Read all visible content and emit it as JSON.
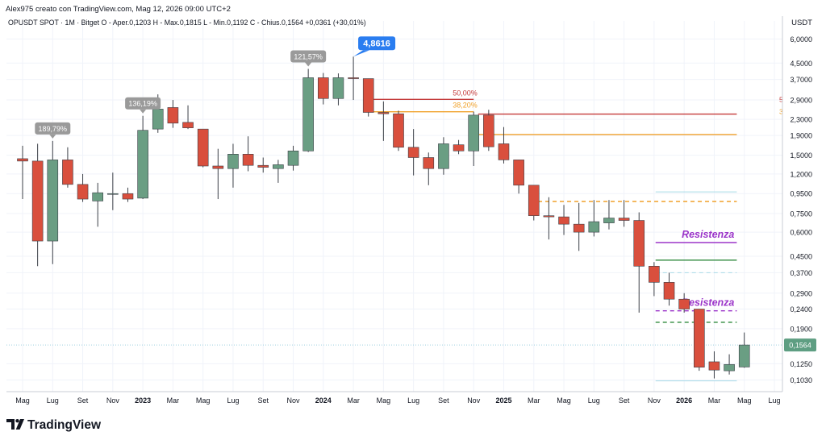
{
  "header": {
    "credit": "Alex975 creato con TradingView.com, Mag 12, 2026 09:00 UTC+2",
    "symbol_line": "OPUSDT SPOT · 1M · Bitget  O - Aper.0,1203  H - Max.0,1815  L - Min.0,1192  C - Chius.0,1564  +0,0361 (+30,01%)",
    "currency": "USDT"
  },
  "brand": {
    "name": "TradingView"
  },
  "colors": {
    "up": "#6a9e83",
    "down": "#d94f3d",
    "fib50": "#c43a3a",
    "fib382": "#f0a12a",
    "resistance": "#9b35c9",
    "green_line": "#2f8a3c",
    "light_blue": "#a9dbe8",
    "price_label": "#5e9e82",
    "callout_gray": "#9a9a9a",
    "callout_blue": "#2a7df0"
  },
  "chart_data": {
    "type": "candlestick",
    "y_scale": "log",
    "ylim": [
      0.095,
      6.5
    ],
    "y_ticks": [
      "6,0000",
      "4,5000",
      "3,7000",
      "2,9000",
      "2,3000",
      "1,9000",
      "1,5000",
      "1,2000",
      "0,9500",
      "0,7500",
      "0,6000",
      "0,4500",
      "0,3700",
      "0,2900",
      "0,2400",
      "0,1900",
      "0,1250",
      "0,1030"
    ],
    "x_tick_labels": [
      "Mag",
      "Lug",
      "Set",
      "Nov",
      "2023",
      "Mar",
      "Mag",
      "Lug",
      "Set",
      "Nov",
      "2024",
      "Mar",
      "Mag",
      "Lug",
      "Set",
      "Nov",
      "2025",
      "Mar",
      "Mag",
      "Lug",
      "Set",
      "Nov",
      "2026",
      "Mar",
      "Mag",
      "Lug"
    ],
    "candles": [
      {
        "o": 1.44,
        "h": 1.68,
        "l": 0.89,
        "c": 1.4
      },
      {
        "o": 1.4,
        "h": 1.72,
        "l": 0.4,
        "c": 0.54
      },
      {
        "o": 0.54,
        "h": 1.78,
        "l": 0.41,
        "c": 1.42
      },
      {
        "o": 1.42,
        "h": 1.65,
        "l": 1.02,
        "c": 1.06
      },
      {
        "o": 1.06,
        "h": 1.2,
        "l": 0.86,
        "c": 0.89
      },
      {
        "o": 0.87,
        "h": 1.08,
        "l": 0.64,
        "c": 0.96
      },
      {
        "o": 0.95,
        "h": 1.22,
        "l": 0.78,
        "c": 0.95
      },
      {
        "o": 0.95,
        "h": 1.02,
        "l": 0.86,
        "c": 0.89
      },
      {
        "o": 0.9,
        "h": 2.4,
        "l": 0.89,
        "c": 2.02
      },
      {
        "o": 2.05,
        "h": 3.1,
        "l": 1.96,
        "c": 2.6
      },
      {
        "o": 2.65,
        "h": 2.9,
        "l": 2.08,
        "c": 2.2
      },
      {
        "o": 2.22,
        "h": 2.72,
        "l": 2.05,
        "c": 2.08
      },
      {
        "o": 2.05,
        "h": 2.05,
        "l": 1.3,
        "c": 1.32
      },
      {
        "o": 1.32,
        "h": 1.62,
        "l": 0.89,
        "c": 1.28
      },
      {
        "o": 1.28,
        "h": 1.72,
        "l": 1.02,
        "c": 1.52
      },
      {
        "o": 1.52,
        "h": 1.88,
        "l": 1.24,
        "c": 1.33
      },
      {
        "o": 1.33,
        "h": 1.46,
        "l": 1.22,
        "c": 1.3
      },
      {
        "o": 1.28,
        "h": 1.42,
        "l": 1.08,
        "c": 1.34
      },
      {
        "o": 1.33,
        "h": 1.68,
        "l": 1.25,
        "c": 1.58
      },
      {
        "o": 1.58,
        "h": 4.2,
        "l": 1.56,
        "c": 3.78
      },
      {
        "o": 3.78,
        "h": 4.0,
        "l": 2.75,
        "c": 2.95
      },
      {
        "o": 2.95,
        "h": 3.98,
        "l": 2.72,
        "c": 3.78
      },
      {
        "o": 3.78,
        "h": 4.86,
        "l": 2.9,
        "c": 3.74
      },
      {
        "o": 3.74,
        "h": 3.74,
        "l": 2.38,
        "c": 2.5
      },
      {
        "o": 2.5,
        "h": 2.85,
        "l": 1.78,
        "c": 2.46
      },
      {
        "o": 2.46,
        "h": 2.55,
        "l": 1.58,
        "c": 1.65
      },
      {
        "o": 1.65,
        "h": 2.05,
        "l": 1.18,
        "c": 1.46
      },
      {
        "o": 1.46,
        "h": 1.55,
        "l": 1.05,
        "c": 1.28
      },
      {
        "o": 1.28,
        "h": 1.86,
        "l": 1.19,
        "c": 1.72
      },
      {
        "o": 1.7,
        "h": 1.8,
        "l": 1.52,
        "c": 1.58
      },
      {
        "o": 1.58,
        "h": 2.52,
        "l": 1.32,
        "c": 2.42
      },
      {
        "o": 2.42,
        "h": 2.58,
        "l": 1.58,
        "c": 1.66
      },
      {
        "o": 1.72,
        "h": 2.1,
        "l": 1.36,
        "c": 1.42
      },
      {
        "o": 1.42,
        "h": 1.42,
        "l": 0.95,
        "c": 1.05
      },
      {
        "o": 1.05,
        "h": 1.05,
        "l": 0.69,
        "c": 0.73
      },
      {
        "o": 0.73,
        "h": 0.91,
        "l": 0.55,
        "c": 0.72
      },
      {
        "o": 0.72,
        "h": 0.83,
        "l": 0.58,
        "c": 0.66
      },
      {
        "o": 0.66,
        "h": 0.85,
        "l": 0.48,
        "c": 0.6
      },
      {
        "o": 0.6,
        "h": 0.88,
        "l": 0.57,
        "c": 0.68
      },
      {
        "o": 0.67,
        "h": 0.88,
        "l": 0.62,
        "c": 0.71
      },
      {
        "o": 0.71,
        "h": 0.88,
        "l": 0.64,
        "c": 0.69
      },
      {
        "o": 0.69,
        "h": 0.76,
        "l": 0.23,
        "c": 0.4
      },
      {
        "o": 0.4,
        "h": 0.42,
        "l": 0.28,
        "c": 0.33
      },
      {
        "o": 0.33,
        "h": 0.37,
        "l": 0.25,
        "c": 0.27
      },
      {
        "o": 0.27,
        "h": 0.29,
        "l": 0.23,
        "c": 0.24
      },
      {
        "o": 0.24,
        "h": 0.24,
        "l": 0.115,
        "c": 0.12
      },
      {
        "o": 0.128,
        "h": 0.145,
        "l": 0.105,
        "c": 0.116
      },
      {
        "o": 0.115,
        "h": 0.14,
        "l": 0.11,
        "c": 0.124
      },
      {
        "o": 0.1203,
        "h": 0.1815,
        "l": 0.1192,
        "c": 0.1564
      }
    ],
    "levels": [
      {
        "name": "fib-50-level",
        "label": "50,00%",
        "right_label": "5",
        "value": 2.92,
        "from": 23,
        "to": 30,
        "color_key": "fib50",
        "style": "solid"
      },
      {
        "name": "fib-50-extended-level",
        "value": 2.45,
        "from": 30.3,
        "to": 47.5,
        "color_key": "fib50",
        "style": "solid"
      },
      {
        "name": "fib-382-level",
        "label": "38,20%",
        "right_label": "3",
        "value": 2.52,
        "from": 22.7,
        "to": 30,
        "color_key": "fib382",
        "style": "solid"
      },
      {
        "name": "fib-382-extended-level",
        "value": 1.92,
        "from": 30.3,
        "to": 47.5,
        "color_key": "fib382",
        "style": "solid"
      },
      {
        "name": "orange-dashed-level",
        "value": 0.865,
        "from": 33.8,
        "to": 47.5,
        "color_key": "fib382",
        "style": "dashed"
      },
      {
        "name": "light-blue-upper-level",
        "value": 0.97,
        "from": 42.1,
        "to": 47.5,
        "color_key": "light_blue",
        "style": "solid"
      },
      {
        "name": "resistance-upper-level",
        "label": "Resistenza",
        "value": 0.53,
        "from": 42.1,
        "to": 47.5,
        "color_key": "resistance",
        "style": "solid"
      },
      {
        "name": "green-level",
        "value": 0.43,
        "from": 42.1,
        "to": 47.5,
        "color_key": "green_line",
        "style": "solid"
      },
      {
        "name": "light-blue-dashed-level",
        "value": 0.37,
        "from": 42.1,
        "to": 47.5,
        "color_key": "light_blue",
        "style": "dashed"
      },
      {
        "name": "resistance-lower-level",
        "label": "Resistenza",
        "value": 0.235,
        "from": 42.1,
        "to": 47.5,
        "color_key": "resistance",
        "style": "dashed"
      },
      {
        "name": "green-dashed-level",
        "value": 0.205,
        "from": 42.1,
        "to": 47.5,
        "color_key": "green_line",
        "style": "dashed"
      },
      {
        "name": "light-blue-bottom-level",
        "value": 0.102,
        "from": 42.1,
        "to": 47.5,
        "color_key": "light_blue",
        "style": "solid"
      }
    ],
    "last_price": {
      "value": 0.1564,
      "label": "0,1564"
    },
    "callouts": [
      {
        "text": "189,79%",
        "candle": 2,
        "price": 1.78,
        "style": "gray"
      },
      {
        "text": "136,19%",
        "candle": 8,
        "price": 2.4,
        "style": "gray"
      },
      {
        "text": "121,57%",
        "candle": 19,
        "price": 4.2,
        "style": "gray"
      },
      {
        "text": "4,8616",
        "candle": 22,
        "price": 4.86,
        "style": "blue"
      }
    ]
  }
}
